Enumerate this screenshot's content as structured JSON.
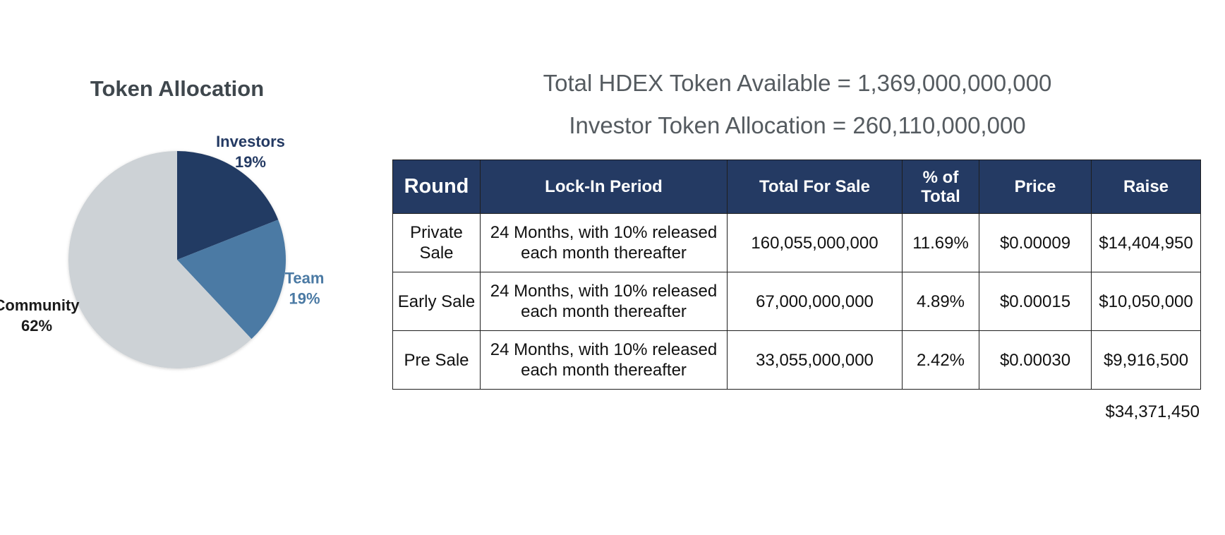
{
  "headline": {
    "line1": "Total HDEX Token Available = 1,369,000,000,000",
    "line2": "Investor Token Allocation = 260,110,000,000"
  },
  "colors": {
    "investors": "#243a63",
    "team": "#4b7aa4",
    "community": "#cdd2d6",
    "header_bg": "#243a63",
    "title_text": "#3f474d"
  },
  "chart_data": {
    "type": "pie",
    "title": "Token Allocation",
    "slices": [
      {
        "name": "Investors",
        "value": 19,
        "label": "19%"
      },
      {
        "name": "Team",
        "value": 19,
        "label": "19%"
      },
      {
        "name": "Community",
        "value": 62,
        "label": "62%"
      }
    ]
  },
  "table": {
    "headers": [
      "Round",
      "Lock-In Period",
      "Total For Sale",
      "% of Total",
      "Price",
      "Raise"
    ],
    "rows": [
      [
        "Private Sale",
        "24 Months, with 10% released each month thereafter",
        "160,055,000,000",
        "11.69%",
        "$0.00009",
        "$14,404,950"
      ],
      [
        "Early Sale",
        "24 Months, with 10% released each month thereafter",
        "67,000,000,000",
        "4.89%",
        "$0.00015",
        "$10,050,000"
      ],
      [
        "Pre Sale",
        "24 Months, with 10% released each month thereafter",
        "33,055,000,000",
        "2.42%",
        "$0.00030",
        "$9,916,500"
      ]
    ],
    "total_raise": "$34,371,450"
  }
}
